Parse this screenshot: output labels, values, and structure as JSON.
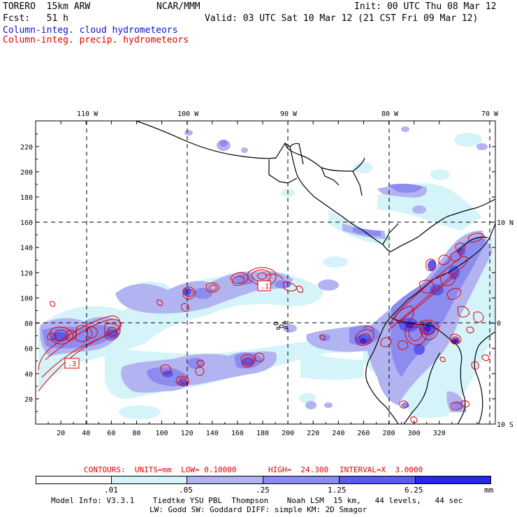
{
  "header": {
    "model": "TORERO  15km ARW",
    "org": "NCAR/MMM",
    "init": "Init: 00 UTC Thu 08 Mar 12",
    "fcst": "Fcst:   51 h",
    "valid": "Valid: 03 UTC Sat 10 Mar 12 (21 CST Fri 09 Mar 12)",
    "field_cloud": "Column-integ. cloud hydrometeors",
    "field_precip": "Column-integ. precip. hydrometeors"
  },
  "map": {
    "lon_labels": [
      "110 W",
      "100 W",
      "90 W",
      "80 W",
      "70 W"
    ],
    "lat_labels": [
      "10 N",
      "0",
      "10 S"
    ],
    "y_ticks": [
      "220",
      "200",
      "180",
      "160",
      "140",
      "120",
      "100",
      "80",
      "60",
      "40",
      "20"
    ],
    "x_ticks": [
      "20",
      "40",
      "60",
      "80",
      "100",
      "120",
      "140",
      "160",
      "180",
      "200",
      "220",
      "240",
      "260",
      "280",
      "300",
      "320"
    ],
    "contour_labels": [
      ".1",
      ".3"
    ]
  },
  "contour_info": {
    "units": "CONTOURS:  UNITS=mm  LOW= 0.10000",
    "high": "HIGH=  24.300",
    "interval": "INTERVAL=X  3.0000"
  },
  "colorbar": {
    "levels": [
      ".01",
      ".05",
      ".25",
      "1.25",
      "6.25"
    ],
    "unit": "mm",
    "colors": [
      "#ffffff",
      "#d4f4fa",
      "#b2b4f2",
      "#8c8cf0",
      "#5a5af0",
      "#2828ec"
    ]
  },
  "footer": {
    "line1": "Model Info: V3.3.1    Tiedtke YSU PBL  Thompson    Noah LSM  15 km,   44 levels,   44 sec",
    "line2": "LW: Godd SW: Goddard DIFF: simple KM: 2D Smagor"
  }
}
